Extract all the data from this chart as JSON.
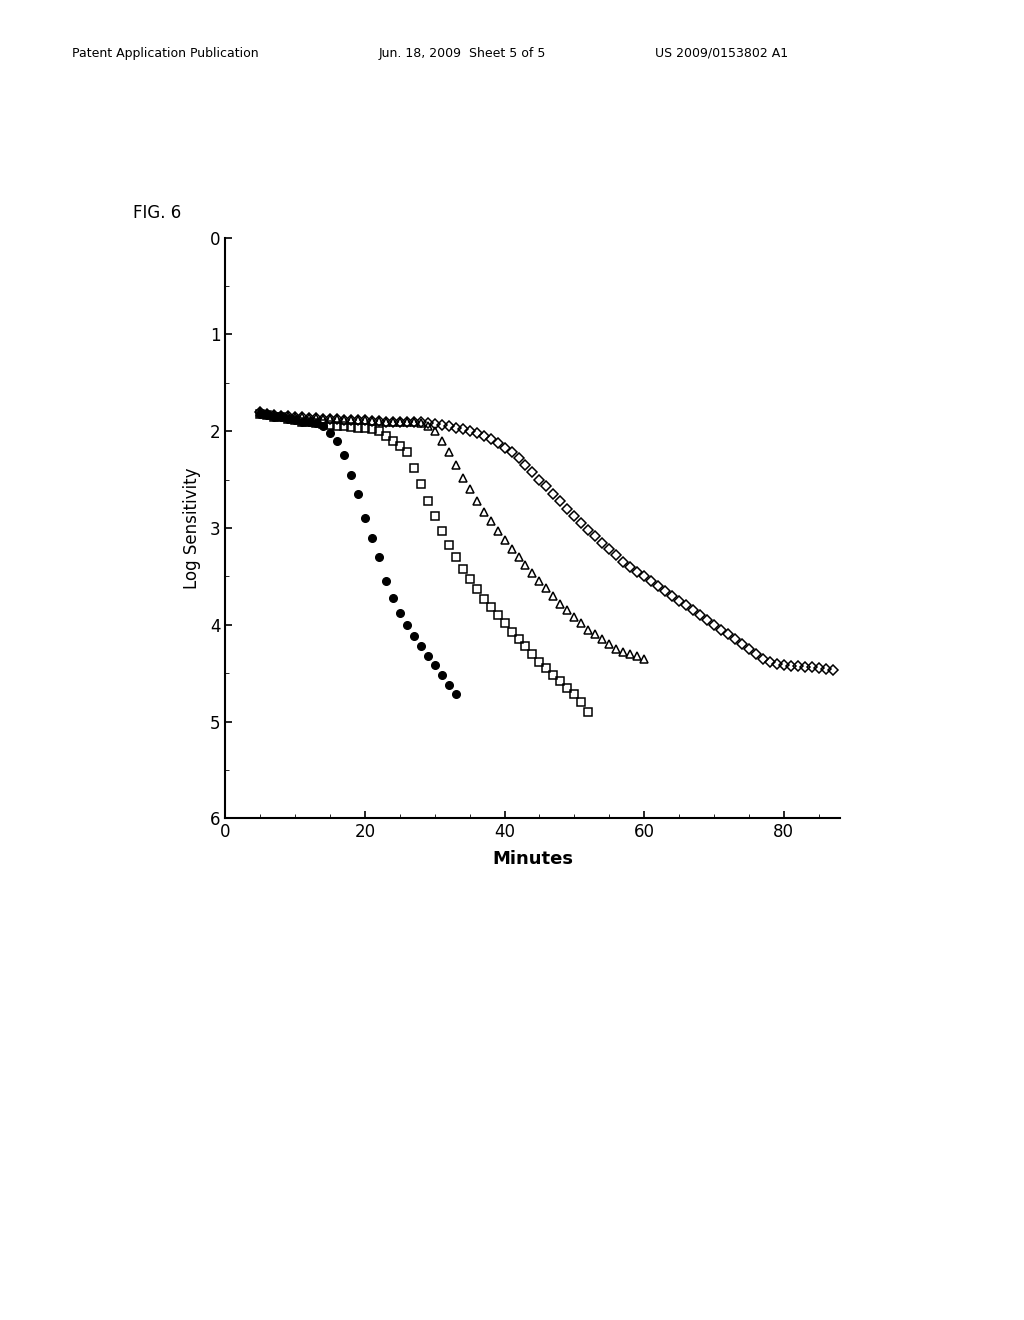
{
  "xlabel": "Minutes",
  "ylabel": "Log Sensitivity",
  "fig_label": "FIG. 6",
  "header_left": "Patent Application Publication",
  "header_mid": "Jun. 18, 2009  Sheet 5 of 5",
  "header_right": "US 2009/0153802 A1",
  "xlim": [
    0,
    88
  ],
  "ylim": [
    6,
    0
  ],
  "xticks": [
    0,
    20,
    40,
    60,
    80
  ],
  "yticks": [
    0,
    1,
    2,
    3,
    4,
    5,
    6
  ],
  "background_color": "#ffffff",
  "filled_circles": {
    "x": [
      5,
      6,
      7,
      8,
      9,
      10,
      11,
      12,
      13,
      14,
      15,
      16,
      17,
      18,
      19,
      20,
      21,
      22,
      23,
      24,
      25,
      26,
      27,
      28,
      29,
      30,
      31,
      32,
      33
    ],
    "y": [
      1.82,
      1.83,
      1.85,
      1.85,
      1.87,
      1.88,
      1.9,
      1.9,
      1.92,
      1.95,
      2.02,
      2.1,
      2.25,
      2.45,
      2.65,
      2.9,
      3.1,
      3.3,
      3.55,
      3.72,
      3.88,
      4.0,
      4.12,
      4.22,
      4.32,
      4.42,
      4.52,
      4.62,
      4.72
    ]
  },
  "open_squares": {
    "x": [
      5,
      6,
      7,
      8,
      9,
      10,
      11,
      12,
      13,
      14,
      15,
      16,
      17,
      18,
      19,
      20,
      21,
      22,
      23,
      24,
      25,
      26,
      27,
      28,
      29,
      30,
      31,
      32,
      33,
      34,
      35,
      36,
      37,
      38,
      39,
      40,
      41,
      42,
      43,
      44,
      45,
      46,
      47,
      48,
      49,
      50,
      51,
      52
    ],
    "y": [
      1.82,
      1.83,
      1.85,
      1.85,
      1.87,
      1.88,
      1.9,
      1.9,
      1.92,
      1.93,
      1.94,
      1.95,
      1.95,
      1.96,
      1.97,
      1.97,
      1.98,
      2.0,
      2.05,
      2.1,
      2.15,
      2.22,
      2.38,
      2.55,
      2.72,
      2.88,
      3.03,
      3.18,
      3.3,
      3.42,
      3.53,
      3.63,
      3.73,
      3.82,
      3.9,
      3.98,
      4.07,
      4.15,
      4.22,
      4.3,
      4.38,
      4.45,
      4.52,
      4.58,
      4.65,
      4.72,
      4.8,
      4.9
    ]
  },
  "open_triangles": {
    "x": [
      5,
      6,
      7,
      8,
      9,
      10,
      11,
      12,
      13,
      14,
      15,
      16,
      17,
      18,
      19,
      20,
      21,
      22,
      23,
      24,
      25,
      26,
      27,
      28,
      29,
      30,
      31,
      32,
      33,
      34,
      35,
      36,
      37,
      38,
      39,
      40,
      41,
      42,
      43,
      44,
      45,
      46,
      47,
      48,
      49,
      50,
      51,
      52,
      53,
      54,
      55,
      56,
      57,
      58,
      59,
      60
    ],
    "y": [
      1.8,
      1.82,
      1.83,
      1.84,
      1.84,
      1.85,
      1.85,
      1.86,
      1.86,
      1.87,
      1.87,
      1.87,
      1.88,
      1.88,
      1.88,
      1.88,
      1.89,
      1.89,
      1.9,
      1.9,
      1.9,
      1.9,
      1.9,
      1.92,
      1.95,
      2.0,
      2.1,
      2.22,
      2.35,
      2.48,
      2.6,
      2.72,
      2.83,
      2.93,
      3.03,
      3.12,
      3.22,
      3.3,
      3.38,
      3.47,
      3.55,
      3.62,
      3.7,
      3.78,
      3.85,
      3.92,
      3.98,
      4.05,
      4.1,
      4.15,
      4.2,
      4.25,
      4.28,
      4.3,
      4.32,
      4.35
    ]
  },
  "open_diamonds": {
    "x": [
      5,
      6,
      7,
      8,
      9,
      10,
      11,
      12,
      13,
      14,
      15,
      16,
      17,
      18,
      19,
      20,
      21,
      22,
      23,
      24,
      25,
      26,
      27,
      28,
      29,
      30,
      31,
      32,
      33,
      34,
      35,
      36,
      37,
      38,
      39,
      40,
      41,
      42,
      43,
      44,
      45,
      46,
      47,
      48,
      49,
      50,
      51,
      52,
      53,
      54,
      55,
      56,
      57,
      58,
      59,
      60,
      61,
      62,
      63,
      64,
      65,
      66,
      67,
      68,
      69,
      70,
      71,
      72,
      73,
      74,
      75,
      76,
      77,
      78,
      79,
      80,
      81,
      82,
      83,
      84,
      85,
      86,
      87
    ],
    "y": [
      1.8,
      1.82,
      1.83,
      1.84,
      1.84,
      1.85,
      1.85,
      1.86,
      1.86,
      1.87,
      1.87,
      1.87,
      1.88,
      1.88,
      1.88,
      1.88,
      1.89,
      1.89,
      1.9,
      1.9,
      1.9,
      1.9,
      1.9,
      1.91,
      1.92,
      1.93,
      1.94,
      1.95,
      1.97,
      1.98,
      2.0,
      2.02,
      2.05,
      2.08,
      2.12,
      2.17,
      2.22,
      2.28,
      2.35,
      2.42,
      2.5,
      2.57,
      2.65,
      2.72,
      2.8,
      2.88,
      2.95,
      3.02,
      3.08,
      3.15,
      3.22,
      3.28,
      3.35,
      3.4,
      3.45,
      3.5,
      3.55,
      3.6,
      3.65,
      3.7,
      3.75,
      3.8,
      3.85,
      3.9,
      3.95,
      4.0,
      4.05,
      4.1,
      4.15,
      4.2,
      4.25,
      4.3,
      4.35,
      4.38,
      4.4,
      4.42,
      4.43,
      4.43,
      4.44,
      4.44,
      4.45,
      4.46,
      4.47
    ]
  }
}
